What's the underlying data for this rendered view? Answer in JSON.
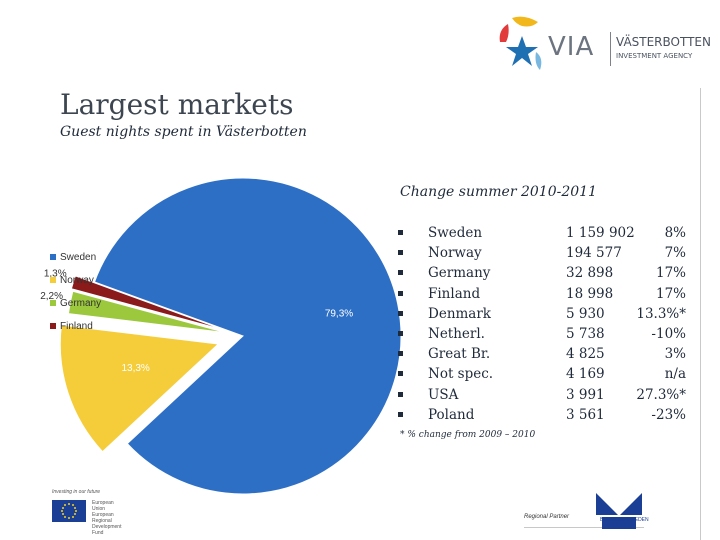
{
  "logo": {
    "word": "VIA",
    "name": "VÄSTERBOTTEN",
    "sub": "INVESTMENT AGENCY"
  },
  "slide": {
    "title": "Largest markets",
    "subtitle": "Guest nights spent in Västerbotten"
  },
  "chart_data": {
    "type": "pie",
    "slices": [
      {
        "name": "Sweden",
        "value": 79.3,
        "label": "79,3%",
        "color": "#2e6fc6"
      },
      {
        "name": "Norway",
        "value": 13.3,
        "label": "13,3%",
        "color": "#f5cd3a"
      },
      {
        "name": "Germany",
        "value": 2.2,
        "label": "2,2%",
        "color": "#9cc83d"
      },
      {
        "name": "Finland",
        "value": 1.3,
        "label": "1,3%",
        "color": "#8b1a1a"
      }
    ],
    "legend": "left",
    "legend_entries": [
      "Sweden",
      "Norway",
      "Germany",
      "Finland"
    ]
  },
  "table": {
    "title": "Change summer 2010-2011",
    "rows": [
      {
        "country": "Sweden",
        "nights": "1 159 902",
        "change": "8%"
      },
      {
        "country": "Norway",
        "nights": "194 577",
        "change": "7%"
      },
      {
        "country": "Germany",
        "nights": "32 898",
        "change": "17%"
      },
      {
        "country": "Finland",
        "nights": "18 998",
        "change": "17%"
      },
      {
        "country": "Denmark",
        "nights": "5 930",
        "change": "13.3%*"
      },
      {
        "country": "Netherl.",
        "nights": "5 738",
        "change": "-10%"
      },
      {
        "country": "Great Br.",
        "nights": "4 825",
        "change": "3%"
      },
      {
        "country": "Not spec.",
        "nights": "4 169",
        "change": "n/a"
      },
      {
        "country": "USA",
        "nights": "3 991",
        "change": "27.3%*"
      },
      {
        "country": "Poland",
        "nights": "3 561",
        "change": "-23%"
      }
    ],
    "footnote": "* % change from 2009 – 2010"
  },
  "footer": {
    "eu_note": "Investing in our future",
    "eu_text": "European Union European Regional Development Fund",
    "partner_label": "Regional Partner",
    "bs_name": "BUSINESS SWEDEN"
  }
}
